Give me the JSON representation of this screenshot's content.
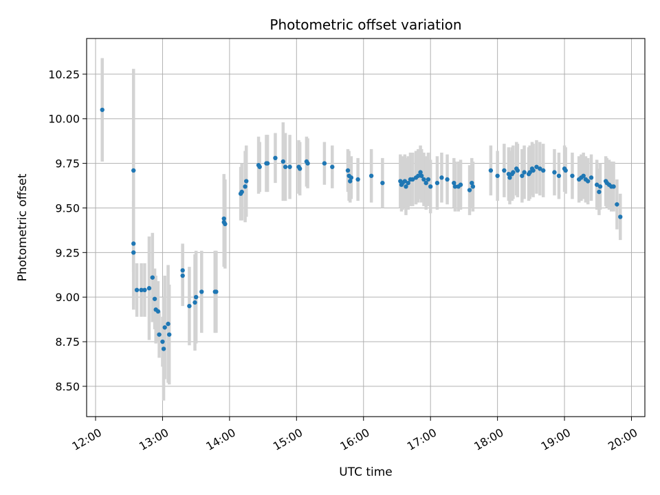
{
  "chart_data": {
    "type": "scatter",
    "title": "Photometric offset variation",
    "xlabel": "UTC time",
    "ylabel": "Photometric offset",
    "x_unit": "HH:MM",
    "xlim": [
      "11:52",
      "20:12"
    ],
    "ylim": [
      8.33,
      10.45
    ],
    "x_ticks": [
      "12:00",
      "13:00",
      "14:00",
      "15:00",
      "16:00",
      "17:00",
      "18:00",
      "19:00",
      "20:00"
    ],
    "y_ticks": [
      8.5,
      8.75,
      9.0,
      9.25,
      9.5,
      9.75,
      10.0,
      10.25
    ],
    "y_tick_labels": [
      "8.50",
      "8.75",
      "9.00",
      "9.25",
      "9.50",
      "9.75",
      "10.00",
      "10.25"
    ],
    "grid": true,
    "colors": {
      "points": "#1f77b4",
      "error_bars": "#d3d3d3",
      "grid": "#b0b0b0"
    },
    "series": [
      {
        "x": [
          "12:06",
          "12:34",
          "12:34",
          "12:34",
          "12:37",
          "12:41",
          "12:44",
          "12:48",
          "12:51",
          "12:53",
          "12:54",
          "12:56",
          "12:57",
          "13:00",
          "13:01",
          "13:02",
          "13:05",
          "13:06",
          "13:18",
          "13:18",
          "13:24",
          "13:29",
          "13:30",
          "13:35",
          "13:47",
          "13:48",
          "13:55",
          "13:55",
          "13:56",
          "14:10",
          "14:11",
          "14:14",
          "14:15",
          "14:26",
          "14:27",
          "14:33",
          "14:34",
          "14:41",
          "14:48",
          "14:50",
          "14:54",
          "15:02",
          "15:03",
          "15:09",
          "15:10",
          "15:25",
          "15:32",
          "15:46",
          "15:47",
          "15:48",
          "15:49",
          "15:55",
          "16:07",
          "16:17",
          "16:33",
          "16:34",
          "16:35",
          "16:37",
          "16:38",
          "16:40",
          "16:42",
          "16:44",
          "16:47",
          "16:49",
          "16:51",
          "16:52",
          "16:54",
          "16:56",
          "16:58",
          "17:00",
          "17:06",
          "17:10",
          "17:15",
          "17:21",
          "17:22",
          "17:25",
          "17:27",
          "17:35",
          "17:37",
          "17:38",
          "17:54",
          "18:00",
          "18:06",
          "18:10",
          "18:11",
          "18:13",
          "18:14",
          "18:17",
          "18:18",
          "18:22",
          "18:24",
          "18:28",
          "18:29",
          "18:31",
          "18:32",
          "18:35",
          "18:38",
          "18:41",
          "18:51",
          "18:55",
          "19:00",
          "19:01",
          "19:07",
          "19:13",
          "19:15",
          "19:17",
          "19:19",
          "19:21",
          "19:24",
          "19:29",
          "19:31",
          "19:32",
          "19:37",
          "19:38",
          "19:40",
          "19:42",
          "19:44",
          "19:47",
          "19:50"
        ],
        "y": [
          10.05,
          9.71,
          9.3,
          9.25,
          9.04,
          9.04,
          9.04,
          9.05,
          9.11,
          8.99,
          8.93,
          8.92,
          8.79,
          8.75,
          8.71,
          8.83,
          8.85,
          8.79,
          9.15,
          9.12,
          8.95,
          8.97,
          9.0,
          9.03,
          9.03,
          9.03,
          9.44,
          9.42,
          9.41,
          9.58,
          9.59,
          9.62,
          9.65,
          9.74,
          9.73,
          9.75,
          9.75,
          9.78,
          9.76,
          9.73,
          9.73,
          9.73,
          9.72,
          9.76,
          9.75,
          9.75,
          9.73,
          9.71,
          9.68,
          9.65,
          9.67,
          9.66,
          9.68,
          9.64,
          9.65,
          9.63,
          9.64,
          9.65,
          9.62,
          9.64,
          9.66,
          9.66,
          9.67,
          9.68,
          9.7,
          9.68,
          9.66,
          9.64,
          9.66,
          9.62,
          9.64,
          9.67,
          9.66,
          9.64,
          9.62,
          9.62,
          9.63,
          9.6,
          9.64,
          9.62,
          9.71,
          9.68,
          9.71,
          9.69,
          9.67,
          9.69,
          9.7,
          9.72,
          9.71,
          9.68,
          9.7,
          9.69,
          9.7,
          9.72,
          9.71,
          9.73,
          9.72,
          9.71,
          9.7,
          9.68,
          9.72,
          9.71,
          9.68,
          9.66,
          9.67,
          9.68,
          9.66,
          9.65,
          9.67,
          9.63,
          9.59,
          9.62,
          9.65,
          9.64,
          9.63,
          9.62,
          9.62,
          9.52,
          9.45
        ],
        "err": [
          0.29,
          0.57,
          0.37,
          0.29,
          0.15,
          0.15,
          0.15,
          0.29,
          0.25,
          0.17,
          0.19,
          0.17,
          0.13,
          0.14,
          0.29,
          0.29,
          0.33,
          0.28,
          0.15,
          0.17,
          0.22,
          0.27,
          0.26,
          0.23,
          0.23,
          0.23,
          0.25,
          0.25,
          0.25,
          0.15,
          0.16,
          0.2,
          0.2,
          0.16,
          0.14,
          0.16,
          0.16,
          0.14,
          0.22,
          0.19,
          0.18,
          0.15,
          0.15,
          0.14,
          0.14,
          0.12,
          0.12,
          0.12,
          0.14,
          0.12,
          0.12,
          0.12,
          0.15,
          0.14,
          0.15,
          0.15,
          0.15,
          0.15,
          0.16,
          0.15,
          0.15,
          0.15,
          0.15,
          0.15,
          0.15,
          0.15,
          0.15,
          0.15,
          0.15,
          0.15,
          0.15,
          0.14,
          0.14,
          0.14,
          0.14,
          0.14,
          0.14,
          0.14,
          0.14,
          0.14,
          0.14,
          0.14,
          0.15,
          0.15,
          0.15,
          0.15,
          0.15,
          0.15,
          0.15,
          0.15,
          0.15,
          0.15,
          0.15,
          0.15,
          0.15,
          0.15,
          0.15,
          0.15,
          0.13,
          0.13,
          0.13,
          0.13,
          0.13,
          0.13,
          0.13,
          0.13,
          0.13,
          0.13,
          0.13,
          0.14,
          0.13,
          0.13,
          0.14,
          0.14,
          0.14,
          0.14,
          0.14,
          0.14,
          0.13
        ]
      }
    ]
  }
}
